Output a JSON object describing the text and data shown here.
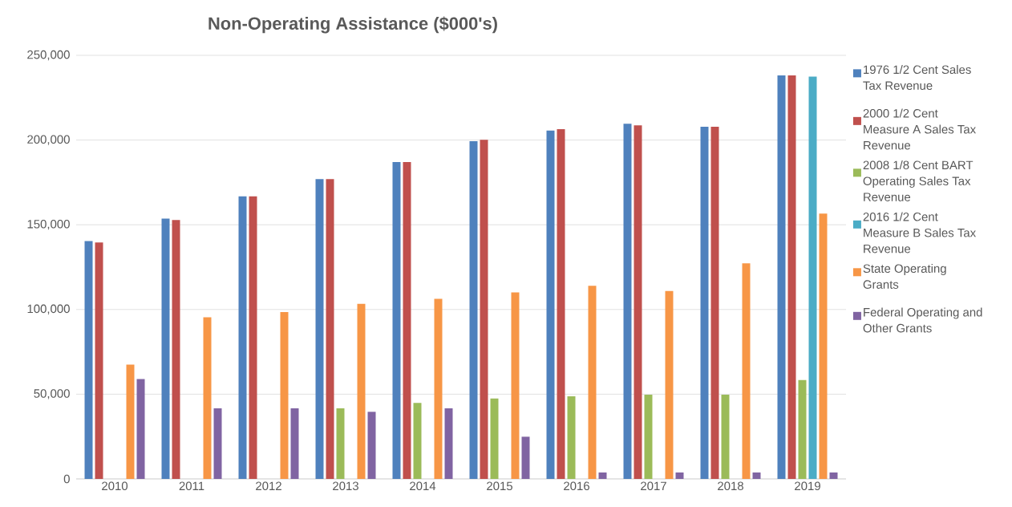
{
  "chart_data": {
    "type": "bar",
    "title": "Non-Operating Assistance ($000's)",
    "categories": [
      "2010",
      "2011",
      "2012",
      "2013",
      "2014",
      "2015",
      "2016",
      "2017",
      "2018",
      "2019"
    ],
    "series": [
      {
        "name": "1976 1/2 Cent Sales Tax Revenue",
        "color": "#4f81bd",
        "values": [
          140400,
          153600,
          166800,
          176900,
          187000,
          199300,
          205600,
          209600,
          207900,
          238100
        ]
      },
      {
        "name": "2000 1/2 Cent Measure A Sales Tax Revenue",
        "color": "#c0504d",
        "values": [
          139600,
          152800,
          166800,
          176900,
          187000,
          200200,
          206400,
          208700,
          207900,
          238100
        ]
      },
      {
        "name": "2008 1/8 Cent BART Operating Sales Tax Revenue",
        "color": "#9bbb59",
        "values": [
          null,
          null,
          null,
          41700,
          44900,
          47400,
          48800,
          49700,
          49700,
          58300
        ]
      },
      {
        "name": "2016 1/2 Cent Measure B Sales Tax Revenue",
        "color": "#4bacc6",
        "values": [
          null,
          null,
          null,
          null,
          null,
          null,
          null,
          null,
          null,
          237500
        ]
      },
      {
        "name": "State Operating Grants",
        "color": "#f79646",
        "values": [
          67500,
          95400,
          98500,
          103300,
          106300,
          110100,
          114000,
          110900,
          127200,
          156600
        ]
      },
      {
        "name": "Federal Operating and Other Grants",
        "color": "#8064a2",
        "values": [
          58900,
          41700,
          41700,
          39600,
          41700,
          24900,
          3800,
          3800,
          3800,
          3800
        ]
      }
    ],
    "ylim": [
      0,
      250000
    ],
    "yticks": [
      0,
      {
        "value": 50000,
        "label": "50,000"
      },
      {
        "value": 100000,
        "label": "100,000"
      },
      {
        "value": 150000,
        "label": "150,000"
      },
      {
        "value": 200000,
        "label": "200,000"
      },
      {
        "value": 250000,
        "label": "250,000"
      }
    ],
    "grid": "y",
    "legend": "right"
  }
}
